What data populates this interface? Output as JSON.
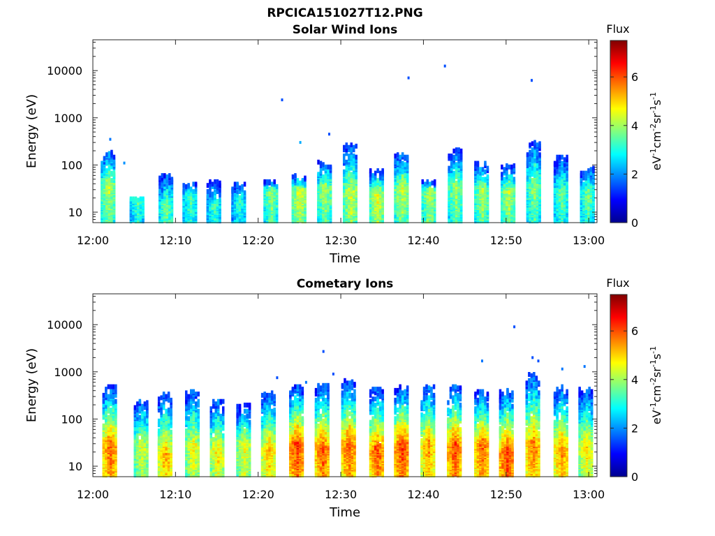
{
  "figure": {
    "title": "RPCICA151027T12.PNG"
  },
  "colorscale": [
    "#00008f",
    "#0000ff",
    "#0080ff",
    "#00ffff",
    "#80ff80",
    "#ffff00",
    "#ff8000",
    "#ff0000",
    "#800000"
  ],
  "chart_data": [
    {
      "type": "heatmap",
      "title": "Solar Wind Ions",
      "xlabel": "Time",
      "ylabel": "Energy (eV)",
      "x_ticks": [
        "12:00",
        "12:10",
        "12:20",
        "12:30",
        "12:40",
        "12:50",
        "13:00"
      ],
      "xlim_minutes": [
        0,
        61
      ],
      "y_ticks": [
        "10",
        "100",
        "1000",
        "10000"
      ],
      "ylim": [
        6,
        45000
      ],
      "yscale": "log",
      "grid": false,
      "colorbar": {
        "title": "Flux",
        "label": "eV-1cm-2sr-1s-1",
        "ticks": [
          "0",
          "2",
          "4",
          "6"
        ],
        "range": [
          0,
          7.5
        ]
      },
      "bursts": [
        {
          "t": 1.8,
          "e_peak": 40,
          "e_max": 200,
          "level": 4.3
        },
        {
          "t": 5.3,
          "e_peak": 20,
          "e_max": 20,
          "level": 3.5
        },
        {
          "t": 8.8,
          "e_peak": 15,
          "e_max": 60,
          "level": 3.8
        },
        {
          "t": 11.7,
          "e_peak": 25,
          "e_max": 40,
          "level": 3.5
        },
        {
          "t": 14.6,
          "e_peak": 15,
          "e_max": 45,
          "level": 3.4
        },
        {
          "t": 17.6,
          "e_peak": 18,
          "e_max": 40,
          "level": 3.2
        },
        {
          "t": 21.5,
          "e_peak": 30,
          "e_max": 45,
          "level": 4.0
        },
        {
          "t": 24.9,
          "e_peak": 30,
          "e_max": 60,
          "level": 4.6
        },
        {
          "t": 28.0,
          "e_peak": 35,
          "e_max": 120,
          "level": 4.2
        },
        {
          "t": 31.1,
          "e_peak": 30,
          "e_max": 280,
          "level": 4.5
        },
        {
          "t": 34.3,
          "e_peak": 25,
          "e_max": 80,
          "level": 4.6
        },
        {
          "t": 37.3,
          "e_peak": 35,
          "e_max": 180,
          "level": 4.4
        },
        {
          "t": 40.6,
          "e_peak": 30,
          "e_max": 45,
          "level": 4.3
        },
        {
          "t": 43.8,
          "e_peak": 35,
          "e_max": 220,
          "level": 4.1
        },
        {
          "t": 47.0,
          "e_peak": 30,
          "e_max": 110,
          "level": 4.2
        },
        {
          "t": 50.2,
          "e_peak": 30,
          "e_max": 100,
          "level": 4.3
        },
        {
          "t": 53.3,
          "e_peak": 40,
          "e_max": 300,
          "level": 4.0
        },
        {
          "t": 56.6,
          "e_peak": 30,
          "e_max": 150,
          "level": 3.7
        },
        {
          "t": 59.8,
          "e_peak": 30,
          "e_max": 90,
          "level": 3.8
        }
      ],
      "points": [
        {
          "t": 22.9,
          "e": 2400,
          "level": 1.5
        },
        {
          "t": 25.1,
          "e": 300,
          "level": 2.2
        },
        {
          "t": 28.6,
          "e": 450,
          "level": 1.5
        },
        {
          "t": 38.2,
          "e": 7000,
          "level": 1.5
        },
        {
          "t": 42.6,
          "e": 12500,
          "level": 1.5
        },
        {
          "t": 53.1,
          "e": 6200,
          "level": 1.5
        },
        {
          "t": 2.1,
          "e": 350,
          "level": 1.8
        },
        {
          "t": 3.8,
          "e": 110,
          "level": 2.0
        }
      ]
    },
    {
      "type": "heatmap",
      "title": "Cometary Ions",
      "xlabel": "Time",
      "ylabel": "Energy (eV)",
      "x_ticks": [
        "12:00",
        "12:10",
        "12:20",
        "12:30",
        "12:40",
        "12:50",
        "13:00"
      ],
      "xlim_minutes": [
        0,
        61
      ],
      "y_ticks": [
        "10",
        "100",
        "1000",
        "10000"
      ],
      "ylim": [
        6,
        45000
      ],
      "yscale": "log",
      "grid": false,
      "colorbar": {
        "title": "Flux",
        "label": "eV-1cm-2sr-1s-1",
        "ticks": [
          "0",
          "2",
          "4",
          "6"
        ],
        "range": [
          0,
          7.5
        ]
      },
      "bursts": [
        {
          "t": 2.0,
          "e_peak": 30,
          "e_max": 500,
          "level": 6.0
        },
        {
          "t": 5.8,
          "e_peak": 30,
          "e_max": 250,
          "level": 4.6
        },
        {
          "t": 8.7,
          "e_peak": 20,
          "e_max": 350,
          "level": 5.4
        },
        {
          "t": 12.0,
          "e_peak": 30,
          "e_max": 400,
          "level": 4.8
        },
        {
          "t": 15.0,
          "e_peak": 25,
          "e_max": 250,
          "level": 5.0
        },
        {
          "t": 18.2,
          "e_peak": 30,
          "e_max": 200,
          "level": 4.8
        },
        {
          "t": 21.2,
          "e_peak": 25,
          "e_max": 400,
          "level": 5.3
        },
        {
          "t": 24.6,
          "e_peak": 30,
          "e_max": 500,
          "level": 6.3
        },
        {
          "t": 27.7,
          "e_peak": 25,
          "e_max": 600,
          "level": 6.1
        },
        {
          "t": 30.9,
          "e_peak": 30,
          "e_max": 700,
          "level": 6.0
        },
        {
          "t": 34.3,
          "e_peak": 25,
          "e_max": 450,
          "level": 6.1
        },
        {
          "t": 37.3,
          "e_peak": 30,
          "e_max": 500,
          "level": 6.3
        },
        {
          "t": 40.5,
          "e_peak": 30,
          "e_max": 500,
          "level": 5.6
        },
        {
          "t": 43.7,
          "e_peak": 30,
          "e_max": 500,
          "level": 6.2
        },
        {
          "t": 47.0,
          "e_peak": 30,
          "e_max": 400,
          "level": 6.0
        },
        {
          "t": 50.0,
          "e_peak": 20,
          "e_max": 450,
          "level": 6.3
        },
        {
          "t": 53.2,
          "e_peak": 30,
          "e_max": 900,
          "level": 5.8
        },
        {
          "t": 56.6,
          "e_peak": 25,
          "e_max": 500,
          "level": 5.7
        },
        {
          "t": 59.6,
          "e_peak": 30,
          "e_max": 450,
          "level": 5.0
        }
      ],
      "points": [
        {
          "t": 22.3,
          "e": 750,
          "level": 1.5
        },
        {
          "t": 27.9,
          "e": 2700,
          "level": 1.5
        },
        {
          "t": 47.1,
          "e": 1700,
          "level": 1.8
        },
        {
          "t": 51.0,
          "e": 9000,
          "level": 1.5
        },
        {
          "t": 53.2,
          "e": 2000,
          "level": 1.5
        },
        {
          "t": 53.9,
          "e": 1700,
          "level": 1.5
        },
        {
          "t": 56.8,
          "e": 1150,
          "level": 1.8
        },
        {
          "t": 59.5,
          "e": 1300,
          "level": 1.8
        },
        {
          "t": 29.1,
          "e": 900,
          "level": 1.5
        },
        {
          "t": 25.8,
          "e": 600,
          "level": 1.8
        }
      ]
    }
  ]
}
